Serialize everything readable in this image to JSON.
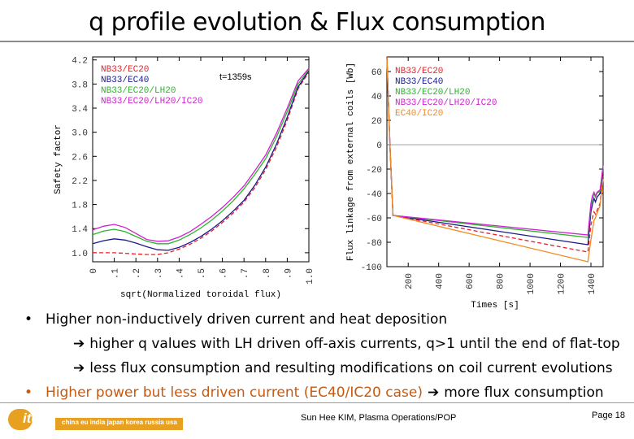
{
  "slide": {
    "title": "q profile evolution & Flux consumption",
    "bullets": [
      {
        "text": "Higher non-inductively driven current and heat deposition",
        "color": "#000000"
      },
      {
        "text": "higher q values with LH driven off-axis currents, q>1 until the end of flat-top",
        "sub": true
      },
      {
        "text": "less flux consumption and resulting modifications on coil current evolutions",
        "sub": true
      },
      {
        "text": "Higher power but less driven current (EC40/IC20 case)",
        "suffix": "more flux consumption",
        "color": "#c65a11"
      }
    ],
    "footer": {
      "logo_word": "iter",
      "logo_countries": "china eu india japan korea russia usa",
      "author": "Sun Hee KIM, Plasma Operations/POP",
      "page": "Page 18"
    }
  },
  "chart_data": [
    {
      "type": "line",
      "annotation": "t=1359s",
      "xlabel": "sqrt(Normalized toroidal flux)",
      "ylabel": "Safety factor",
      "xlim": [
        0,
        1.0
      ],
      "ylim": [
        0.85,
        4.25
      ],
      "xticks": [
        "0",
        ".1",
        ".2",
        ".3",
        ".4",
        ".5",
        ".6",
        ".7",
        ".8",
        ".9",
        "1.0"
      ],
      "yticks": [
        "1.0",
        "1.4",
        "1.8",
        "2.2",
        "2.6",
        "3.0",
        "3.4",
        "3.8",
        "4.2"
      ],
      "x": [
        0,
        0.05,
        0.1,
        0.15,
        0.2,
        0.25,
        0.3,
        0.35,
        0.4,
        0.45,
        0.5,
        0.55,
        0.6,
        0.65,
        0.7,
        0.75,
        0.8,
        0.85,
        0.9,
        0.95,
        1.0
      ],
      "series": [
        {
          "name": "NB33/EC20",
          "color": "#e8202a",
          "dash": "5,3",
          "values": [
            1.0,
            1.0,
            1.0,
            0.99,
            0.98,
            0.97,
            0.97,
            1.0,
            1.06,
            1.14,
            1.24,
            1.36,
            1.5,
            1.66,
            1.84,
            2.08,
            2.38,
            2.75,
            3.2,
            3.72,
            4.0
          ]
        },
        {
          "name": "NB33/EC40",
          "color": "#1a1a8c",
          "dash": "",
          "values": [
            1.15,
            1.2,
            1.23,
            1.21,
            1.16,
            1.1,
            1.05,
            1.04,
            1.09,
            1.17,
            1.27,
            1.39,
            1.53,
            1.69,
            1.87,
            2.12,
            2.42,
            2.8,
            3.25,
            3.75,
            4.02
          ]
        },
        {
          "name": "NB33/EC20/LH20",
          "color": "#2ab52a",
          "dash": "",
          "values": [
            1.3,
            1.36,
            1.39,
            1.35,
            1.27,
            1.19,
            1.15,
            1.15,
            1.21,
            1.3,
            1.41,
            1.54,
            1.69,
            1.86,
            2.06,
            2.3,
            2.56,
            2.92,
            3.34,
            3.8,
            4.04
          ]
        },
        {
          "name": "NB33/EC20/LH20/IC20",
          "color": "#d020d0",
          "dash": "",
          "values": [
            1.38,
            1.44,
            1.47,
            1.42,
            1.32,
            1.22,
            1.19,
            1.2,
            1.26,
            1.35,
            1.47,
            1.6,
            1.75,
            1.92,
            2.11,
            2.36,
            2.62,
            2.98,
            3.4,
            3.85,
            4.06
          ]
        }
      ]
    },
    {
      "type": "line",
      "xlabel": "Times [s]",
      "ylabel": "Flux linkage from external coils [Wb]",
      "xlim": [
        60,
        1480
      ],
      "ylim": [
        -100,
        72
      ],
      "xticks": [
        "200",
        "400",
        "600",
        "800",
        "1000",
        "1200",
        "1400"
      ],
      "yticks": [
        "60",
        "40",
        "20",
        "0",
        "-20",
        "-40",
        "-60",
        "-80",
        "-100"
      ],
      "zero_line": true,
      "series": [
        {
          "name": "NB33/EC20",
          "color": "#e8202a",
          "dash": "5,3",
          "x": [
            60,
            80,
            100,
            1380,
            1400,
            1410,
            1420,
            1430,
            1440,
            1460,
            1480
          ],
          "y": [
            72,
            0,
            -58,
            -88,
            -66,
            -60,
            -55,
            -57,
            -54,
            -48,
            -24
          ]
        },
        {
          "name": "NB33/EC40",
          "color": "#1a1a8c",
          "dash": "",
          "x": [
            60,
            80,
            100,
            1380,
            1400,
            1410,
            1420,
            1430,
            1440,
            1460,
            1480
          ],
          "y": [
            72,
            0,
            -58,
            -82,
            -55,
            -49,
            -44,
            -47,
            -43,
            -40,
            -20
          ]
        },
        {
          "name": "NB33/EC20/LH20",
          "color": "#2ab52a",
          "dash": "",
          "x": [
            60,
            80,
            100,
            1380,
            1400,
            1410,
            1420,
            1430,
            1440,
            1460,
            1480
          ],
          "y": [
            72,
            0,
            -58,
            -76,
            -50,
            -44,
            -40,
            -43,
            -40,
            -38,
            -18
          ]
        },
        {
          "name": "NB33/EC20/LH20/IC20",
          "color": "#d020d0",
          "dash": "",
          "x": [
            60,
            80,
            100,
            1380,
            1400,
            1410,
            1420,
            1430,
            1440,
            1460,
            1480
          ],
          "y": [
            72,
            0,
            -58,
            -74,
            -48,
            -42,
            -39,
            -42,
            -39,
            -37,
            -17
          ]
        },
        {
          "name": "EC40/IC20",
          "color": "#f08a1c",
          "dash": "",
          "x": [
            60,
            80,
            100,
            1380,
            1400,
            1410,
            1420,
            1430,
            1440,
            1460,
            1480
          ],
          "y": [
            72,
            0,
            -58,
            -96,
            -78,
            -70,
            -62,
            -60,
            -56,
            -50,
            -28
          ]
        }
      ]
    }
  ]
}
